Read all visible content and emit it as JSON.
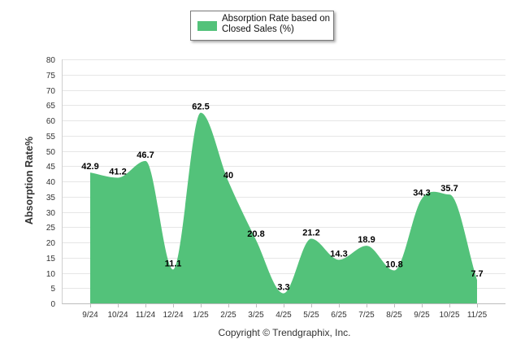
{
  "chart_data": {
    "type": "area",
    "title": "",
    "ylabel": "Absorption Rate%",
    "xlabel": "",
    "ylim": [
      0,
      80
    ],
    "yticks": [
      "0",
      "5",
      "10",
      "15",
      "20",
      "25",
      "30",
      "35",
      "40",
      "45",
      "50",
      "55",
      "60",
      "65",
      "70",
      "75",
      "80"
    ],
    "categories": [
      "9/24",
      "10/24",
      "11/24",
      "12/24",
      "1/25",
      "2/25",
      "3/25",
      "4/25",
      "5/25",
      "6/25",
      "7/25",
      "8/25",
      "9/25",
      "10/25",
      "11/25"
    ],
    "series": [
      {
        "name": "Absorption Rate based on Closed Sales (%)",
        "values": [
          42.9,
          41.2,
          46.7,
          11.1,
          62.5,
          40,
          20.8,
          3.3,
          21.2,
          14.3,
          18.9,
          10.8,
          34.3,
          35.7,
          7.7
        ],
        "labels": [
          "42.9",
          "41.2",
          "46.7",
          "11.1",
          "62.5",
          "40",
          "20.8",
          "3.3",
          "21.2",
          "14.3",
          "18.9",
          "10.8",
          "34.3",
          "35.7",
          "7.7"
        ],
        "color": "#53c27a"
      }
    ],
    "grid": true,
    "legend": {
      "position": "top-center",
      "line1": "Absorption Rate based on",
      "line2": "Closed Sales (%)"
    }
  },
  "footer": {
    "copyright": "Copyright © Trendgraphix, Inc."
  }
}
